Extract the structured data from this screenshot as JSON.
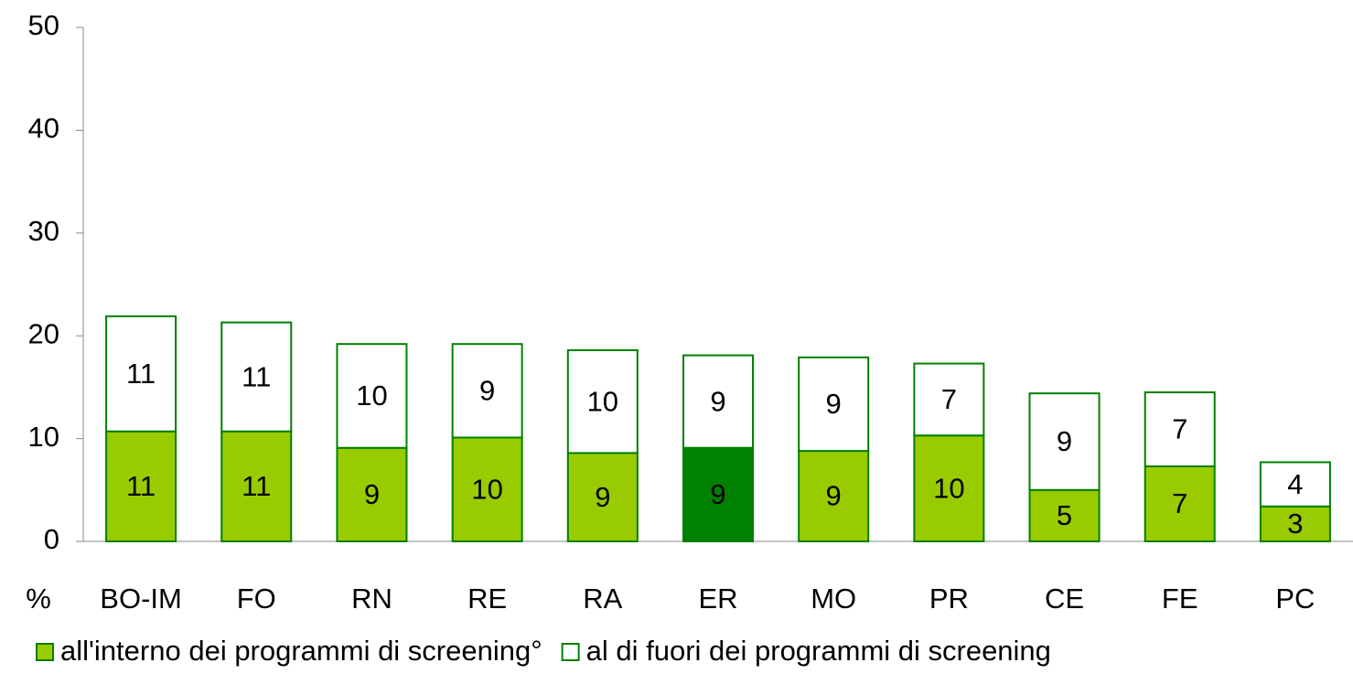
{
  "chart_data": {
    "type": "stacked_bar",
    "y_label": "%",
    "categories": [
      "BO-IM",
      "FO",
      "RN",
      "RE",
      "RA",
      "ER",
      "MO",
      "PR",
      "CE",
      "FE",
      "PC"
    ],
    "series": [
      {
        "name": "all'interno dei programmi di screening°",
        "color": "#99cc00",
        "point_colors": [
          "#99cc00",
          "#99cc00",
          "#99cc00",
          "#99cc00",
          "#99cc00",
          "#008000",
          "#99cc00",
          "#99cc00",
          "#99cc00",
          "#99cc00",
          "#99cc00"
        ],
        "values": [
          10.7,
          10.7,
          9.1,
          10.1,
          8.6,
          9.1,
          8.8,
          10.3,
          5.0,
          7.3,
          3.4
        ],
        "value_labels": [
          "11",
          "11",
          "9",
          "10",
          "9",
          "9",
          "9",
          "10",
          "5",
          "7",
          "3"
        ]
      },
      {
        "name": "al di fuori dei programmi di screening",
        "color": "#ffffff",
        "values": [
          11.2,
          10.6,
          10.1,
          9.1,
          10.0,
          9.0,
          9.1,
          7.0,
          9.4,
          7.2,
          4.3
        ],
        "value_labels": [
          "11",
          "11",
          "10",
          "9",
          "10",
          "9",
          "9",
          "7",
          "9",
          "7",
          "4"
        ]
      }
    ],
    "edge_color": "#008000",
    "ylim": [
      0,
      50
    ],
    "yticks": [
      0,
      10,
      20,
      30,
      40,
      50
    ],
    "grid": false
  }
}
